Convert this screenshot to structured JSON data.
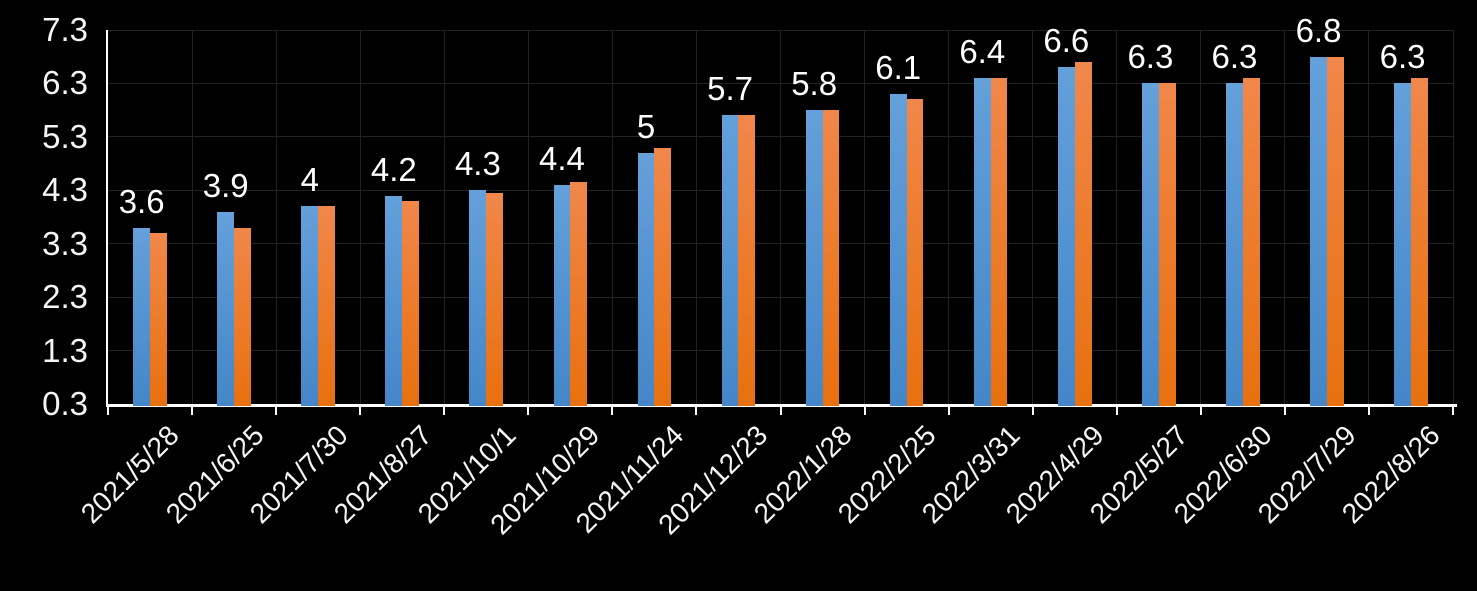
{
  "chart_data": {
    "type": "bar",
    "title": "",
    "xlabel": "",
    "ylabel": "",
    "categories": [
      "2021/5/28",
      "2021/6/25",
      "2021/7/30",
      "2021/8/27",
      "2021/10/1",
      "2021/10/29",
      "2021/11/24",
      "2021/12/23",
      "2022/1/28",
      "2022/2/25",
      "2022/3/31",
      "2022/4/29",
      "2022/5/27",
      "2022/6/30",
      "2022/7/29",
      "2022/8/26"
    ],
    "series": [
      {
        "name": "series-1-blue",
        "color_top": "#64A0DA",
        "color_bottom": "#4486C8",
        "values": [
          3.6,
          3.9,
          4.0,
          4.2,
          4.3,
          4.4,
          5.0,
          5.7,
          5.8,
          6.1,
          6.4,
          6.6,
          6.3,
          6.3,
          6.8,
          6.3
        ]
      },
      {
        "name": "series-2-orange",
        "color_top": "#F0874A",
        "color_bottom": "#E8700E",
        "values": [
          3.5,
          3.6,
          4.0,
          4.1,
          4.25,
          4.45,
          5.1,
          5.7,
          5.8,
          6.0,
          6.4,
          6.7,
          6.3,
          6.4,
          6.8,
          6.4
        ]
      }
    ],
    "data_labels": {
      "labeled_series_index": 0,
      "values": [
        "3.6",
        "3.9",
        "4",
        "4.2",
        "4.3",
        "4.4",
        "5",
        "5.7",
        "5.8",
        "6.1",
        "6.4",
        "6.6",
        "6.3",
        "6.3",
        "6.8",
        "6.3"
      ]
    },
    "ylim": [
      0.3,
      7.3
    ],
    "ytick_step": 1,
    "ytick_labels": [
      "0.3",
      "1.3",
      "2.3",
      "3.3",
      "4.3",
      "5.3",
      "6.3",
      "7.3"
    ],
    "x_label_rotation_deg": 45,
    "grid": true,
    "legend": "none"
  },
  "colors": {
    "background": "#000000",
    "gridline": "#222222",
    "axis_line": "#FFFFFF",
    "label_text": "#FFFFFF"
  }
}
